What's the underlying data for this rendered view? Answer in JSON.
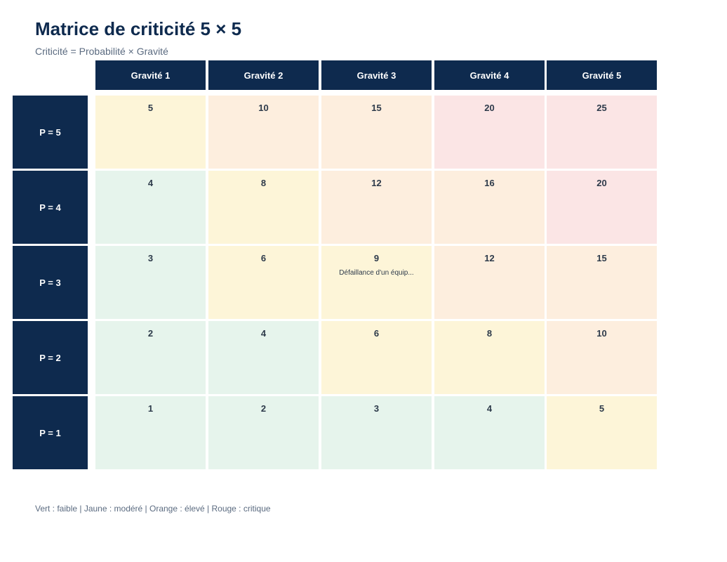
{
  "header": {
    "title": "Matrice de criticité 5 × 5",
    "subtitle": "Criticité = Probabilité × Gravité"
  },
  "chart_data": {
    "type": "heatmap",
    "title": "Matrice de criticité 5 × 5",
    "subtitle": "Criticité = Probabilité × Gravité",
    "columns": [
      "Gravité 1",
      "Gravité 2",
      "Gravité 3",
      "Gravité 4",
      "Gravité 5"
    ],
    "rows": [
      "P = 5",
      "P = 4",
      "P = 3",
      "P = 2",
      "P = 1"
    ],
    "values": [
      [
        5,
        10,
        15,
        20,
        25
      ],
      [
        4,
        8,
        12,
        16,
        20
      ],
      [
        3,
        6,
        9,
        12,
        15
      ],
      [
        2,
        4,
        6,
        8,
        10
      ],
      [
        1,
        2,
        3,
        4,
        5
      ]
    ],
    "levels": [
      [
        "modere",
        "eleve",
        "eleve",
        "critique",
        "critique"
      ],
      [
        "faible",
        "modere",
        "eleve",
        "eleve",
        "critique"
      ],
      [
        "faible",
        "modere",
        "modere",
        "eleve",
        "eleve"
      ],
      [
        "faible",
        "faible",
        "modere",
        "modere",
        "eleve"
      ],
      [
        "faible",
        "faible",
        "faible",
        "faible",
        "modere"
      ]
    ],
    "level_colors": {
      "faible": "#e6f4ec",
      "modere": "#fdf5d8",
      "eleve": "#fdeede",
      "critique": "#fbe5e5"
    },
    "risks": [
      {
        "row": 2,
        "col": 2,
        "label": "Défaillance d'un équip..."
      }
    ]
  },
  "legend": {
    "text": "Vert : faible | Jaune : modéré | Orange : élevé | Rouge : critique"
  },
  "colors": {
    "header_bg": "#0e2a4e",
    "header_text": "#ffffff",
    "cell_text": "#2d3a4a"
  }
}
